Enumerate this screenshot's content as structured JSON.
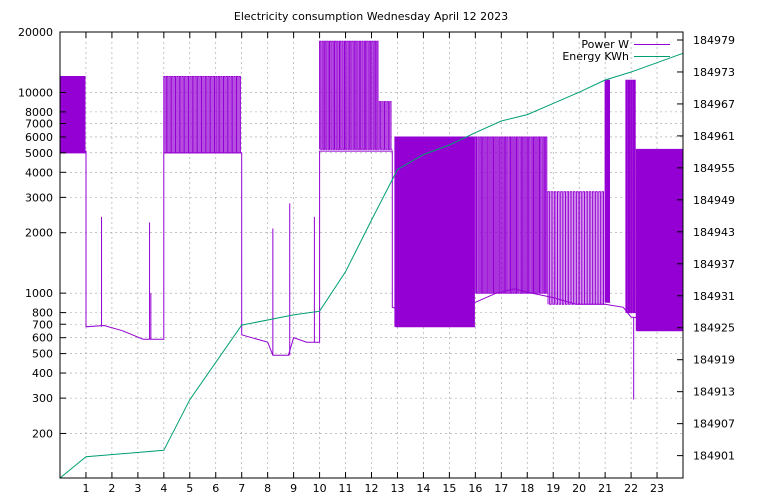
{
  "chart_data": {
    "type": "line",
    "title": "Electricity consumption Wednesday April 12 2023",
    "x_ticks": [
      "1",
      "2",
      "3",
      "4",
      "5",
      "6",
      "7",
      "8",
      "9",
      "10",
      "11",
      "12",
      "13",
      "14",
      "15",
      "16",
      "17",
      "18",
      "19",
      "20",
      "21",
      "22",
      "23"
    ],
    "xlim": [
      0,
      24
    ],
    "y_left": {
      "scale": "log",
      "lim": [
        120,
        20000
      ],
      "ticks": [
        200,
        300,
        400,
        500,
        600,
        700,
        800,
        1000,
        2000,
        3000,
        4000,
        5000,
        6000,
        7000,
        8000,
        10000,
        20000
      ]
    },
    "y_right": {
      "lim": [
        184896.8,
        184980.5
      ],
      "ticks": [
        184901,
        184907,
        184913,
        184919,
        184925,
        184931,
        184937,
        184943,
        184949,
        184955,
        184961,
        184967,
        184973,
        184979
      ]
    },
    "grid": true,
    "legend_position": "top-right",
    "colors": {
      "power": "#9400d3",
      "energy": "#009e73"
    },
    "series": [
      {
        "name": "Power W",
        "axis": "left",
        "baseline": [
          [
            0,
            5100
          ],
          [
            1,
            5100
          ],
          [
            1,
            680
          ],
          [
            1.7,
            690
          ],
          [
            2.4,
            650
          ],
          [
            3.2,
            590
          ],
          [
            4,
            590
          ],
          [
            4,
            5000
          ],
          [
            7,
            5000
          ],
          [
            7,
            620
          ],
          [
            8,
            570
          ],
          [
            8.2,
            490
          ],
          [
            8.8,
            490
          ],
          [
            9,
            600
          ],
          [
            9.5,
            570
          ],
          [
            10,
            570
          ],
          [
            10,
            5100
          ],
          [
            12.8,
            5100
          ],
          [
            12.8,
            850
          ],
          [
            14,
            780
          ],
          [
            15,
            800
          ],
          [
            16,
            900
          ],
          [
            16.8,
            1000
          ],
          [
            17.5,
            1050
          ],
          [
            18.2,
            1000
          ],
          [
            19,
            950
          ],
          [
            19.9,
            880
          ],
          [
            21,
            880
          ],
          [
            21.7,
            850
          ],
          [
            22,
            760
          ],
          [
            23,
            740
          ],
          [
            24,
            700
          ]
        ],
        "bursts": [
          {
            "x0": 0,
            "x1": 1,
            "low": 5000,
            "high": 12000,
            "count": 14
          },
          {
            "x0": 4,
            "x1": 7,
            "low": 5000,
            "high": 12000,
            "count": 30
          },
          {
            "x0": 10,
            "x1": 12.3,
            "low": 5200,
            "high": 18000,
            "count": 24
          },
          {
            "x0": 12.3,
            "x1": 12.8,
            "low": 5200,
            "high": 9000,
            "count": 5
          },
          {
            "x0": 12.9,
            "x1": 16,
            "low": 680,
            "high": 6000,
            "count": 42
          },
          {
            "x0": 16,
            "x1": 18.8,
            "low": 1000,
            "high": 6000,
            "count": 30
          },
          {
            "x0": 18.8,
            "x1": 21,
            "low": 880,
            "high": 3200,
            "count": 18
          },
          {
            "x0": 21,
            "x1": 21.2,
            "low": 900,
            "high": 11500,
            "count": 3
          },
          {
            "x0": 21.8,
            "x1": 22.2,
            "low": 800,
            "high": 11500,
            "count": 5
          },
          {
            "x0": 22.2,
            "x1": 24,
            "low": 650,
            "high": 5200,
            "count": 30
          }
        ],
        "spikes": [
          {
            "x": 1.6,
            "value": 2400
          },
          {
            "x": 3.45,
            "value": 2250
          },
          {
            "x": 3.5,
            "value": 1000
          },
          {
            "x": 8.2,
            "value": 2100
          },
          {
            "x": 8.85,
            "value": 2800
          },
          {
            "x": 9.8,
            "value": 2400
          },
          {
            "x": 22.1,
            "value": 295
          }
        ]
      },
      {
        "name": "Energy KWh",
        "axis": "right",
        "points": [
          [
            0,
            184896.8
          ],
          [
            1,
            184900.8
          ],
          [
            4,
            184902.0
          ],
          [
            5,
            184911.5
          ],
          [
            7,
            184925.5
          ],
          [
            9,
            184927.4
          ],
          [
            10,
            184928.1
          ],
          [
            11,
            184935.5
          ],
          [
            12,
            184945.2
          ],
          [
            13,
            184954.7
          ],
          [
            14,
            184957.5
          ],
          [
            15,
            184959.3
          ],
          [
            16,
            184961.6
          ],
          [
            17,
            184963.8
          ],
          [
            18,
            184965.0
          ],
          [
            19,
            184967.1
          ],
          [
            20,
            184969.2
          ],
          [
            21,
            184971.5
          ],
          [
            22,
            184973.0
          ],
          [
            24,
            184976.5
          ]
        ]
      }
    ]
  }
}
